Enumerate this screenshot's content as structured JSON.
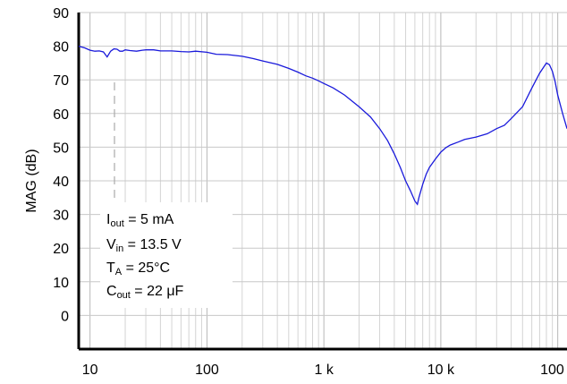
{
  "chart_data": {
    "type": "line",
    "x_scale": "log",
    "xlim": [
      8,
      120000
    ],
    "ylim": [
      -10,
      90
    ],
    "x_tick_labels": [
      "10",
      "100",
      "1 k",
      "10 k",
      "100 k"
    ],
    "x_tick_values": [
      10,
      100,
      1000,
      10000,
      100000
    ],
    "y_tick_values": [
      0,
      10,
      20,
      30,
      40,
      50,
      60,
      70,
      80,
      90
    ],
    "ylabel": "MAG (dB)",
    "xlabel": "",
    "grid": true,
    "series": [
      {
        "color": "#1a1adb",
        "x": [
          8,
          9,
          10,
          11,
          12,
          13,
          14,
          15,
          16,
          17,
          18,
          19,
          20,
          22,
          25,
          28,
          30,
          35,
          40,
          50,
          60,
          70,
          80,
          100,
          120,
          150,
          200,
          250,
          300,
          400,
          500,
          600,
          700,
          800,
          900,
          1000,
          1200,
          1500,
          2000,
          2500,
          3000,
          3500,
          4000,
          4500,
          5000,
          5500,
          6000,
          6300,
          6500,
          7000,
          7500,
          8000,
          9000,
          10000,
          11000,
          12000,
          14000,
          16000,
          20000,
          25000,
          30000,
          35000,
          40000,
          50000,
          60000,
          70000,
          80000,
          85000,
          90000,
          95000,
          100000,
          110000,
          120000
        ],
        "y": [
          80,
          79.5,
          78.8,
          78.5,
          78.6,
          78.3,
          76.8,
          78.5,
          79.2,
          79.1,
          78.5,
          78.5,
          78.9,
          78.7,
          78.5,
          78.8,
          78.9,
          78.9,
          78.6,
          78.6,
          78.4,
          78.3,
          78.5,
          78.2,
          77.6,
          77.5,
          77.0,
          76.3,
          75.6,
          74.6,
          73.4,
          72.3,
          71.2,
          70.5,
          69.7,
          68.9,
          67.6,
          65.5,
          62.0,
          59.0,
          55.5,
          52.0,
          48.0,
          44.0,
          40.0,
          37.0,
          34.0,
          33.0,
          35.0,
          39.0,
          42.0,
          44.0,
          46.5,
          48.5,
          49.8,
          50.6,
          51.5,
          52.3,
          53.0,
          54.0,
          55.5,
          56.5,
          58.5,
          62.0,
          67.5,
          72.0,
          75.0,
          74.5,
          72.5,
          69.5,
          65.5,
          60.0,
          55.5
        ]
      }
    ],
    "annotations": {
      "iout_main": "I",
      "iout_sub": "out",
      "iout_rest": " = 5 mA",
      "vin_main": "V",
      "vin_sub": "in",
      "vin_rest": " = 13.5 V",
      "ta_main": "T",
      "ta_sub": "A",
      "ta_rest": " = 25°C",
      "cout_main": "C",
      "cout_sub": "out",
      "cout_rest": " = 22 μF"
    }
  }
}
